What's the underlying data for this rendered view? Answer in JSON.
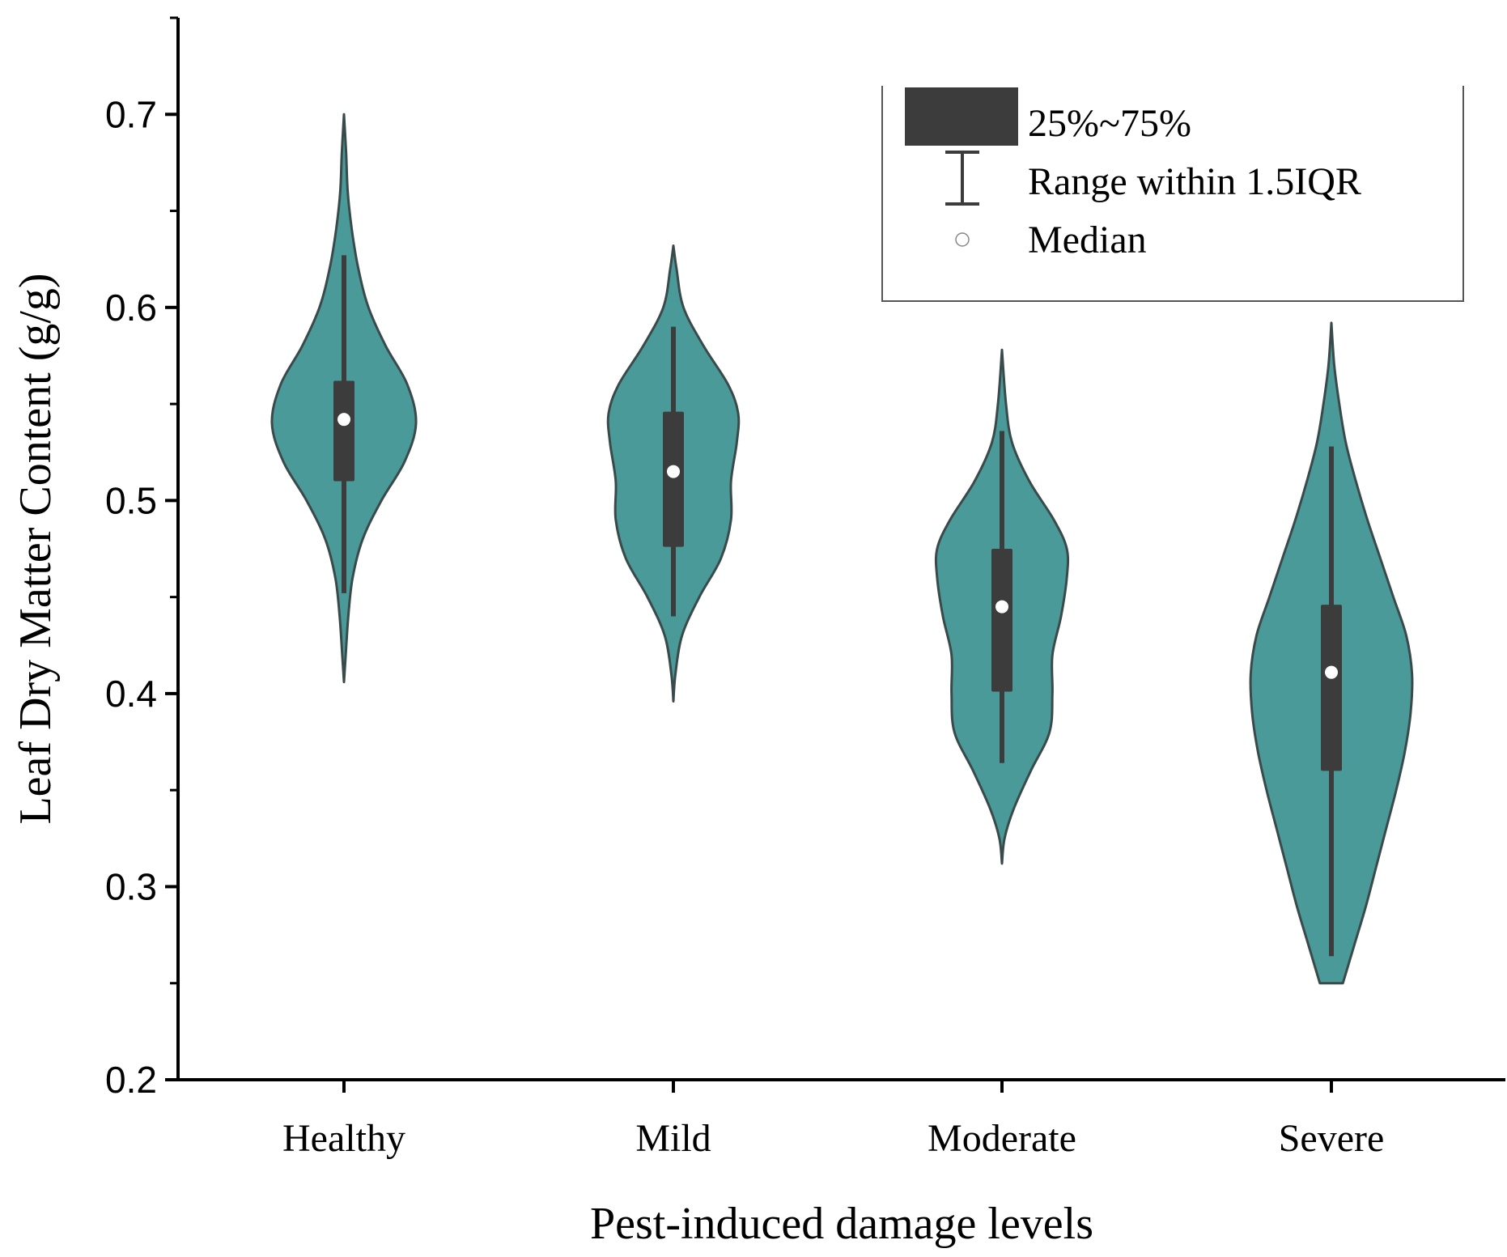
{
  "chart_data": {
    "type": "violin",
    "title": "",
    "xlabel": "Pest-induced damage levels",
    "ylabel": "Leaf Dry Matter Content (g/g)",
    "ylim": [
      0.2,
      0.75
    ],
    "yticks": [
      0.2,
      0.3,
      0.4,
      0.5,
      0.6,
      0.7
    ],
    "ytick_labels": [
      "0.2",
      "0.3",
      "0.4",
      "0.5",
      "0.6",
      "0.7"
    ],
    "categories": [
      "Healthy",
      "Mild",
      "Moderate",
      "Severe"
    ],
    "fill_color": "#4a9a9a",
    "box_color": "#3c3c3c",
    "median_color": "#ffffff",
    "groups": [
      {
        "name": "Healthy",
        "q1": 0.51,
        "median": 0.542,
        "q3": 0.562,
        "whisker_low": 0.452,
        "whisker_high": 0.627,
        "density_min": 0.406,
        "density_max": 0.7,
        "profile": [
          [
            0.406,
            0.0
          ],
          [
            0.42,
            0.012
          ],
          [
            0.44,
            0.03
          ],
          [
            0.46,
            0.06
          ],
          [
            0.48,
            0.13
          ],
          [
            0.5,
            0.26
          ],
          [
            0.52,
            0.42
          ],
          [
            0.54,
            0.5
          ],
          [
            0.56,
            0.44
          ],
          [
            0.58,
            0.29
          ],
          [
            0.6,
            0.17
          ],
          [
            0.62,
            0.1
          ],
          [
            0.64,
            0.055
          ],
          [
            0.66,
            0.026
          ],
          [
            0.68,
            0.015
          ],
          [
            0.7,
            0.0
          ]
        ]
      },
      {
        "name": "Mild",
        "q1": 0.476,
        "median": 0.515,
        "q3": 0.546,
        "whisker_low": 0.44,
        "whisker_high": 0.59,
        "density_min": 0.396,
        "density_max": 0.632,
        "profile": [
          [
            0.396,
            0.0
          ],
          [
            0.41,
            0.014
          ],
          [
            0.43,
            0.06
          ],
          [
            0.45,
            0.18
          ],
          [
            0.47,
            0.33
          ],
          [
            0.49,
            0.4
          ],
          [
            0.51,
            0.4
          ],
          [
            0.53,
            0.44
          ],
          [
            0.545,
            0.45
          ],
          [
            0.56,
            0.38
          ],
          [
            0.58,
            0.21
          ],
          [
            0.6,
            0.07
          ],
          [
            0.62,
            0.022
          ],
          [
            0.632,
            0.0
          ]
        ]
      },
      {
        "name": "Moderate",
        "q1": 0.401,
        "median": 0.445,
        "q3": 0.475,
        "whisker_low": 0.364,
        "whisker_high": 0.536,
        "density_min": 0.312,
        "density_max": 0.578,
        "profile": [
          [
            0.312,
            0.0
          ],
          [
            0.325,
            0.018
          ],
          [
            0.34,
            0.08
          ],
          [
            0.36,
            0.2
          ],
          [
            0.38,
            0.33
          ],
          [
            0.4,
            0.35
          ],
          [
            0.42,
            0.35
          ],
          [
            0.44,
            0.41
          ],
          [
            0.46,
            0.45
          ],
          [
            0.475,
            0.45
          ],
          [
            0.49,
            0.36
          ],
          [
            0.51,
            0.19
          ],
          [
            0.53,
            0.07
          ],
          [
            0.55,
            0.028
          ],
          [
            0.578,
            0.0
          ]
        ]
      },
      {
        "name": "Severe",
        "q1": 0.36,
        "median": 0.411,
        "q3": 0.446,
        "whisker_low": 0.264,
        "whisker_high": 0.528,
        "density_min": 0.25,
        "density_max": 0.592,
        "profile": [
          [
            0.25,
            0.08
          ],
          [
            0.27,
            0.16
          ],
          [
            0.29,
            0.24
          ],
          [
            0.31,
            0.31
          ],
          [
            0.33,
            0.38
          ],
          [
            0.35,
            0.45
          ],
          [
            0.37,
            0.51
          ],
          [
            0.39,
            0.55
          ],
          [
            0.41,
            0.56
          ],
          [
            0.43,
            0.52
          ],
          [
            0.45,
            0.43
          ],
          [
            0.47,
            0.34
          ],
          [
            0.49,
            0.25
          ],
          [
            0.51,
            0.17
          ],
          [
            0.53,
            0.1
          ],
          [
            0.55,
            0.055
          ],
          [
            0.57,
            0.02
          ],
          [
            0.592,
            0.0
          ]
        ]
      }
    ],
    "legend": {
      "position": "top-right",
      "entries": [
        {
          "symbol": "box",
          "label": "25%~75%"
        },
        {
          "symbol": "whisker",
          "label": "Range within 1.5IQR"
        },
        {
          "symbol": "median-dot",
          "label": "Median"
        }
      ]
    }
  }
}
